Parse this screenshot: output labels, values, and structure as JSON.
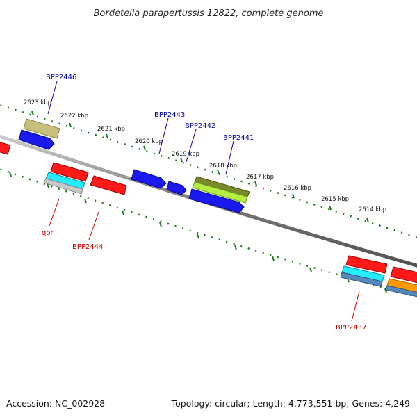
{
  "title": "Bordetella parapertussis 12822, complete genome",
  "footer": {
    "accession": "Accession: NC_002928",
    "topology": "Topology: circular; Length: 4,773,551 bp; Genes: 4,249"
  },
  "ticks": [
    {
      "label": "2623 kbp"
    },
    {
      "label": "2622 kbp"
    },
    {
      "label": "2621 kbp"
    },
    {
      "label": "2620 kbp"
    },
    {
      "label": "2619 kbp"
    },
    {
      "label": "2618 kbp"
    },
    {
      "label": "2617 kbp"
    },
    {
      "label": "2616 kbp"
    },
    {
      "label": "2615 kbp"
    },
    {
      "label": "2614 kbp"
    }
  ],
  "gene_labels": {
    "bpp2446": "BPP2446",
    "bpp2443": "BPP2443",
    "bpp2442": "BPP2442",
    "bpp2441": "BPP2441",
    "qor": "qor",
    "bpp2444": "BPP2444",
    "bpp2437": "BPP2437"
  },
  "colors": {
    "backbone": "#8a8a8a",
    "ruler": "#1a7a1a",
    "red": "#ff1a1a",
    "blue": "#1a1aee",
    "cyan": "#22eeff",
    "olive": "#c8c07a",
    "green": "#88bb22",
    "orange": "#ff9900",
    "steel": "#5588bb",
    "gray": "#c0c0c0"
  }
}
